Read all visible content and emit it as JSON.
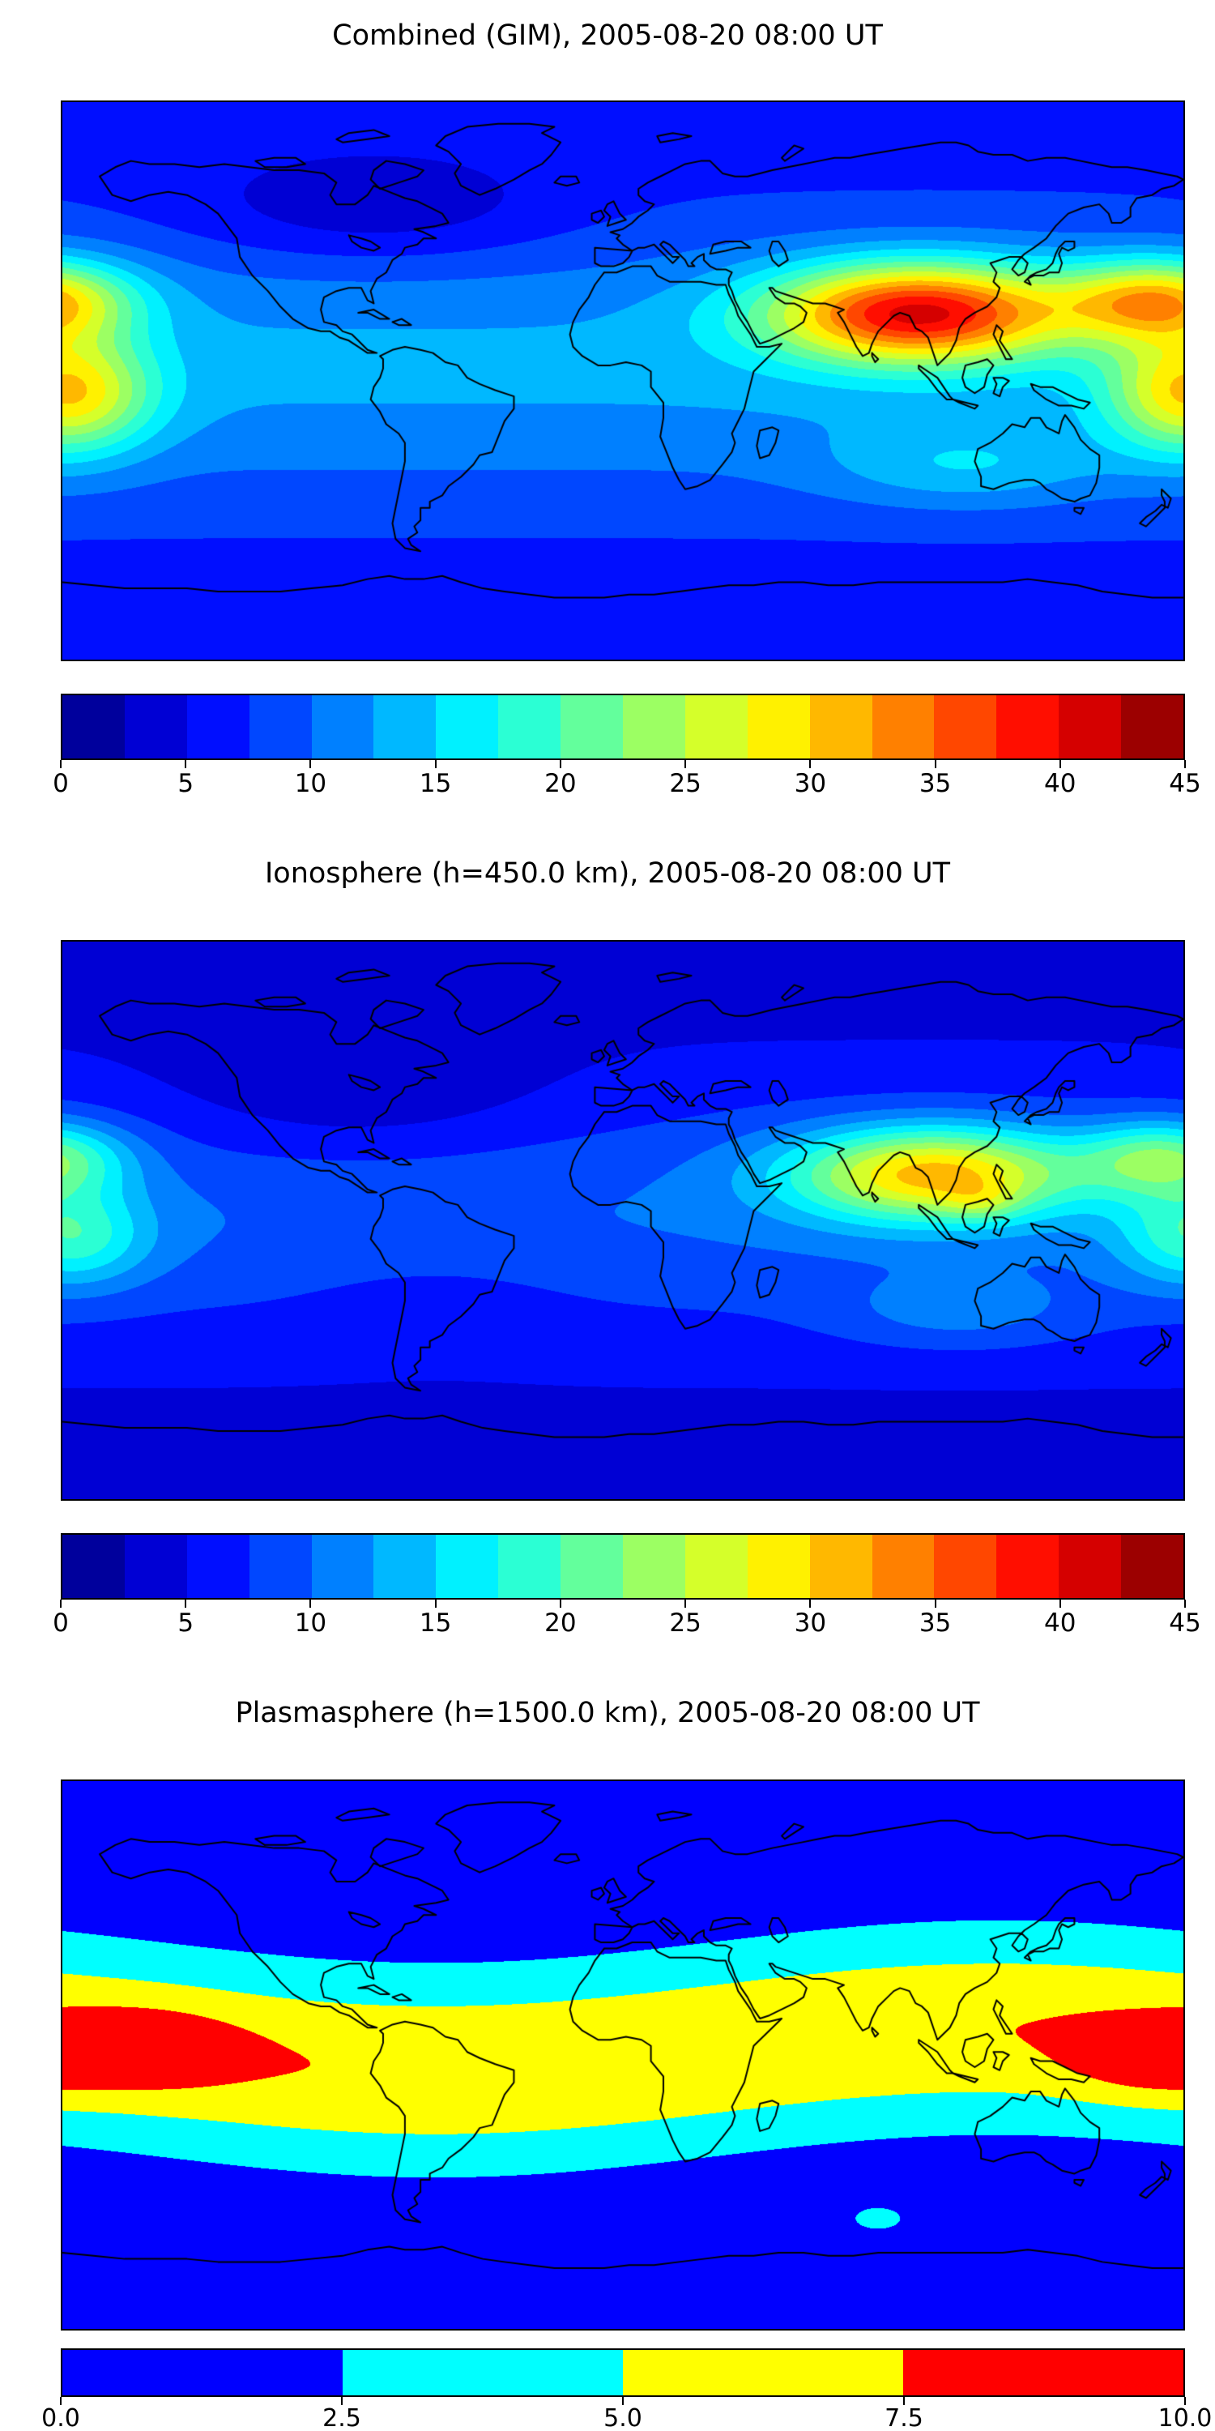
{
  "figure": {
    "background": "#ffffff",
    "panel_count": 3
  },
  "chart_data": [
    {
      "type": "heatmap",
      "subtype": "filled_contour_world_map",
      "title": "Combined (GIM), 2005-08-20 08:00 UT",
      "projection": "equirectangular",
      "lon_range": [
        -180,
        180
      ],
      "lat_range": [
        -90,
        90
      ],
      "colormap": "jet",
      "levels": {
        "min": 0,
        "max": 45,
        "step": 2.5
      },
      "colorbar_ticks": [
        "0",
        "5",
        "10",
        "15",
        "20",
        "25",
        "30",
        "35",
        "40",
        "45"
      ],
      "peak_value": 42,
      "peak_location": {
        "lon": 95,
        "lat": 22
      },
      "field": {
        "base": {
          "offset": 6,
          "amp": 7,
          "lat0": 5,
          "sigma": 45,
          "wave_amp": 0,
          "wave_phase": 0
        },
        "anomalies": [
          {
            "lon": 95,
            "lat": 22,
            "amp": 29,
            "slon": 48,
            "slat": 16
          },
          {
            "lon": 172,
            "lat": 26,
            "amp": 19,
            "slon": 30,
            "slat": 13
          },
          {
            "lon": -178,
            "lat": -4,
            "amp": 18,
            "slon": 26,
            "slat": 19
          },
          {
            "lon": -80,
            "lat": 55,
            "amp": -4.5,
            "slon": 60,
            "slat": 18
          },
          {
            "lon": 110,
            "lat": -28,
            "amp": 5,
            "slon": 45,
            "slat": 13
          }
        ]
      }
    },
    {
      "type": "heatmap",
      "subtype": "filled_contour_world_map",
      "title": "Ionosphere  (h=450.0 km), 2005-08-20 08:00 UT",
      "projection": "equirectangular",
      "lon_range": [
        -180,
        180
      ],
      "lat_range": [
        -90,
        90
      ],
      "colormap": "jet",
      "levels": {
        "min": 0,
        "max": 45,
        "step": 2.5
      },
      "colorbar_ticks": [
        "0",
        "5",
        "10",
        "15",
        "20",
        "25",
        "30",
        "35",
        "40",
        "45"
      ],
      "peak_value": 33,
      "peak_location": {
        "lon": 100,
        "lat": 15
      },
      "field": {
        "base": {
          "offset": 4,
          "amp": 6,
          "lat0": 2,
          "sigma": 42,
          "wave_amp": 0,
          "wave_phase": 0
        },
        "anomalies": [
          {
            "lon": 100,
            "lat": 15,
            "amp": 22,
            "slon": 46,
            "slat": 15
          },
          {
            "lon": 115,
            "lat": 6,
            "amp": 4,
            "slon": 12,
            "slat": 6
          },
          {
            "lon": 174,
            "lat": 20,
            "amp": 13,
            "slon": 26,
            "slat": 12
          },
          {
            "lon": -177,
            "lat": -5,
            "amp": 10,
            "slon": 24,
            "slat": 16
          },
          {
            "lon": -85,
            "lat": 38,
            "amp": -3.2,
            "slon": 65,
            "slat": 22
          },
          {
            "lon": -60,
            "lat": -25,
            "amp": -1.5,
            "slon": 45,
            "slat": 18
          },
          {
            "lon": 108,
            "lat": -30,
            "amp": 4,
            "slon": 40,
            "slat": 12
          }
        ]
      }
    },
    {
      "type": "heatmap",
      "subtype": "filled_contour_world_map",
      "title": "Plasmasphere (h=1500.0 km), 2005-08-20 08:00 UT",
      "projection": "equirectangular",
      "lon_range": [
        -180,
        180
      ],
      "lat_range": [
        -90,
        90
      ],
      "colormap": "jet",
      "levels": {
        "min": 0,
        "max": 10,
        "step": 2.5
      },
      "colorbar_ticks": [
        "0.0",
        "2.5",
        "5.0",
        "7.5",
        "10.0"
      ],
      "peak_value": 10,
      "peak_location": {
        "lon": -160,
        "lat": 0
      },
      "field": {
        "base": {
          "offset": 0.2,
          "amp": 7.2,
          "lat0": 2,
          "sigma": 33,
          "wave_amp": -7,
          "wave_phase": 60
        },
        "anomalies": [
          {
            "lon": -155,
            "lat": 2,
            "amp": 3.2,
            "slon": 30,
            "slat": 13
          },
          {
            "lon": 168,
            "lat": -2,
            "amp": 2.8,
            "slon": 26,
            "slat": 12
          },
          {
            "lon": 82,
            "lat": -54,
            "amp": 2.6,
            "slon": 15,
            "slat": 7
          }
        ]
      }
    }
  ]
}
